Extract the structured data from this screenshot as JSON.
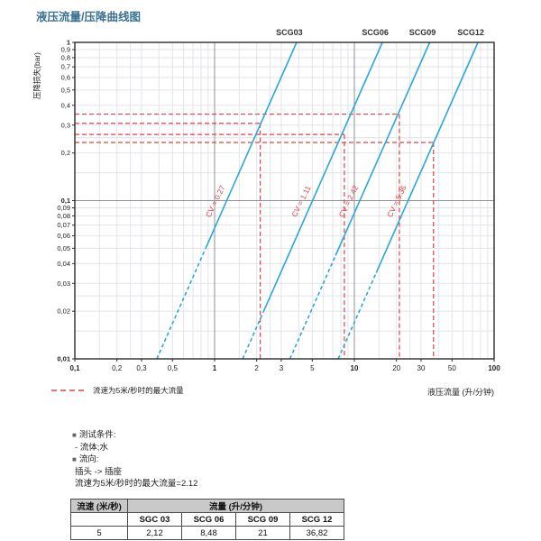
{
  "title": "液压流量/压降曲线图",
  "colors": {
    "title": "#3a7190",
    "curve": "#2aa7d8",
    "construction_red": "#e04040",
    "grid_minor": "#e3e3ea",
    "grid_major": "#8f8f98",
    "frame": "#2b2b2b",
    "text": "#222222",
    "table_header_bg": "#c9c9c9"
  },
  "chart_data": {
    "type": "line",
    "x_scale": "log",
    "y_scale": "log",
    "xlim": [
      0.1,
      100
    ],
    "ylim": [
      0.01,
      1
    ],
    "xlabel": "液压流量 (升/分钟)",
    "ylabel": "压降损失(bar)",
    "grid": true,
    "grid_mantissas": [
      1.5,
      2,
      2.5,
      3,
      4,
      5,
      6,
      7,
      8,
      9
    ],
    "flow_formula_k": 14.3,
    "x_ticks": [
      {
        "v": 0.1,
        "label": "0,1",
        "bold": true
      },
      {
        "v": 0.2,
        "label": "0,2",
        "bold": false
      },
      {
        "v": 0.3,
        "label": "0,3",
        "bold": false
      },
      {
        "v": 0.5,
        "label": "0,5",
        "bold": false
      },
      {
        "v": 1,
        "label": "1",
        "bold": true
      },
      {
        "v": 2,
        "label": "2",
        "bold": false
      },
      {
        "v": 3,
        "label": "3",
        "bold": false
      },
      {
        "v": 5,
        "label": "5",
        "bold": false
      },
      {
        "v": 10,
        "label": "10",
        "bold": true
      },
      {
        "v": 20,
        "label": "20",
        "bold": false
      },
      {
        "v": 30,
        "label": "30",
        "bold": false
      },
      {
        "v": 50,
        "label": "50",
        "bold": false
      },
      {
        "v": 100,
        "label": "100",
        "bold": true
      }
    ],
    "y_ticks": [
      {
        "v": 1,
        "label": "1",
        "bold": true
      },
      {
        "v": 0.9,
        "label": "0,9",
        "bold": false
      },
      {
        "v": 0.8,
        "label": "0,8",
        "bold": false
      },
      {
        "v": 0.7,
        "label": "0,7",
        "bold": false
      },
      {
        "v": 0.6,
        "label": "0,6",
        "bold": false
      },
      {
        "v": 0.5,
        "label": "0,5",
        "bold": false
      },
      {
        "v": 0.4,
        "label": "0,4",
        "bold": false
      },
      {
        "v": 0.3,
        "label": "0,3",
        "bold": false
      },
      {
        "v": 0.2,
        "label": "0,2",
        "bold": false
      },
      {
        "v": 0.1,
        "label": "0,1",
        "bold": true
      },
      {
        "v": 0.09,
        "label": "0,09",
        "bold": false
      },
      {
        "v": 0.08,
        "label": "0,08",
        "bold": false
      },
      {
        "v": 0.07,
        "label": "0,07",
        "bold": false
      },
      {
        "v": 0.06,
        "label": "0,06",
        "bold": false
      },
      {
        "v": 0.05,
        "label": "0,05",
        "bold": false
      },
      {
        "v": 0.04,
        "label": "0,04",
        "bold": false
      },
      {
        "v": 0.03,
        "label": "0,03",
        "bold": false
      },
      {
        "v": 0.02,
        "label": "0,02",
        "bold": false
      },
      {
        "v": 0.01,
        "label": "0,01",
        "bold": true
      }
    ],
    "series": [
      {
        "name": "SCG03",
        "cv": 0.27,
        "cv_label": "CV = 0.27",
        "dash_below_dp": 0.05,
        "max_flow_lpm": 2.12,
        "dp_at_max_flow": 0.308
      },
      {
        "name": "SCG06",
        "cv": 1.11,
        "cv_label": "CV = 1.11",
        "dash_below_dp": 0.02,
        "max_flow_lpm": 8.48,
        "dp_at_max_flow": 0.262
      },
      {
        "name": "SCG09",
        "cv": 2.42,
        "cv_label": "CV = 2.42",
        "dash_below_dp": 0.045,
        "max_flow_lpm": 21,
        "dp_at_max_flow": 0.352
      },
      {
        "name": "SCG12",
        "cv": 5.36,
        "cv_label": "CV = 5.36",
        "dash_below_dp": 0.035,
        "max_flow_lpm": 36.82,
        "dp_at_max_flow": 0.233
      }
    ],
    "legend": {
      "position": "bottom-left",
      "dashed_red_label": "流速为5米/秒时的最大流量"
    }
  },
  "notes": {
    "lines": [
      {
        "bullet": "■",
        "text": "测试条件:"
      },
      {
        "bullet": "",
        "text": "- 流体;水"
      },
      {
        "bullet": "■",
        "text": "流向:"
      },
      {
        "bullet": "",
        "text": "插头 -> 插座"
      },
      {
        "bullet": "",
        "text": "流速为5米/秒时的最大流量=2.12"
      }
    ]
  },
  "table": {
    "col1_header": "流速 (米/秒)",
    "span_header": "流量 (升/分钟)",
    "model_headers": [
      "SGC 03",
      "SCG 06",
      "SCG 09",
      "SCG 12"
    ],
    "rows": [
      {
        "speed": "5",
        "values": [
          "2,12",
          "8,48",
          "21",
          "36,82"
        ]
      }
    ]
  }
}
